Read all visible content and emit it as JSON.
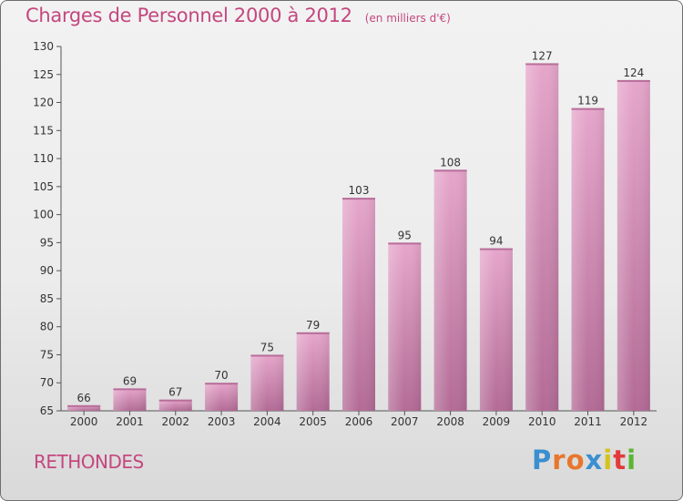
{
  "title": "Charges de Personnel 2000 à 2012",
  "unit_note": "(en milliers d'€)",
  "commune": "RETHONDES",
  "logo": {
    "letters": [
      "P",
      "r",
      "o",
      "x",
      "i",
      "t",
      "i"
    ],
    "colors": [
      "#3a8fd1",
      "#e8762d",
      "#e8762d",
      "#3a8fd1",
      "#d4c31c",
      "#e23b3b",
      "#5bb534"
    ]
  },
  "colors": {
    "bar": "#d98db8",
    "label": "#c4477f",
    "axis": "#333333"
  },
  "chart_data": {
    "type": "bar",
    "title": "Charges de Personnel 2000 à 2012",
    "categories": [
      "2000",
      "2001",
      "2002",
      "2003",
      "2004",
      "2005",
      "2006",
      "2007",
      "2008",
      "2009",
      "2010",
      "2011",
      "2012"
    ],
    "values": [
      66,
      69,
      67,
      70,
      75,
      79,
      103,
      95,
      108,
      94,
      127,
      119,
      124
    ],
    "ylim": [
      65,
      130
    ],
    "yticks": [
      65,
      70,
      75,
      80,
      85,
      90,
      95,
      100,
      105,
      110,
      115,
      120,
      125,
      130
    ],
    "xlabel": "",
    "ylabel": "",
    "grid": false,
    "data_labels": true
  }
}
